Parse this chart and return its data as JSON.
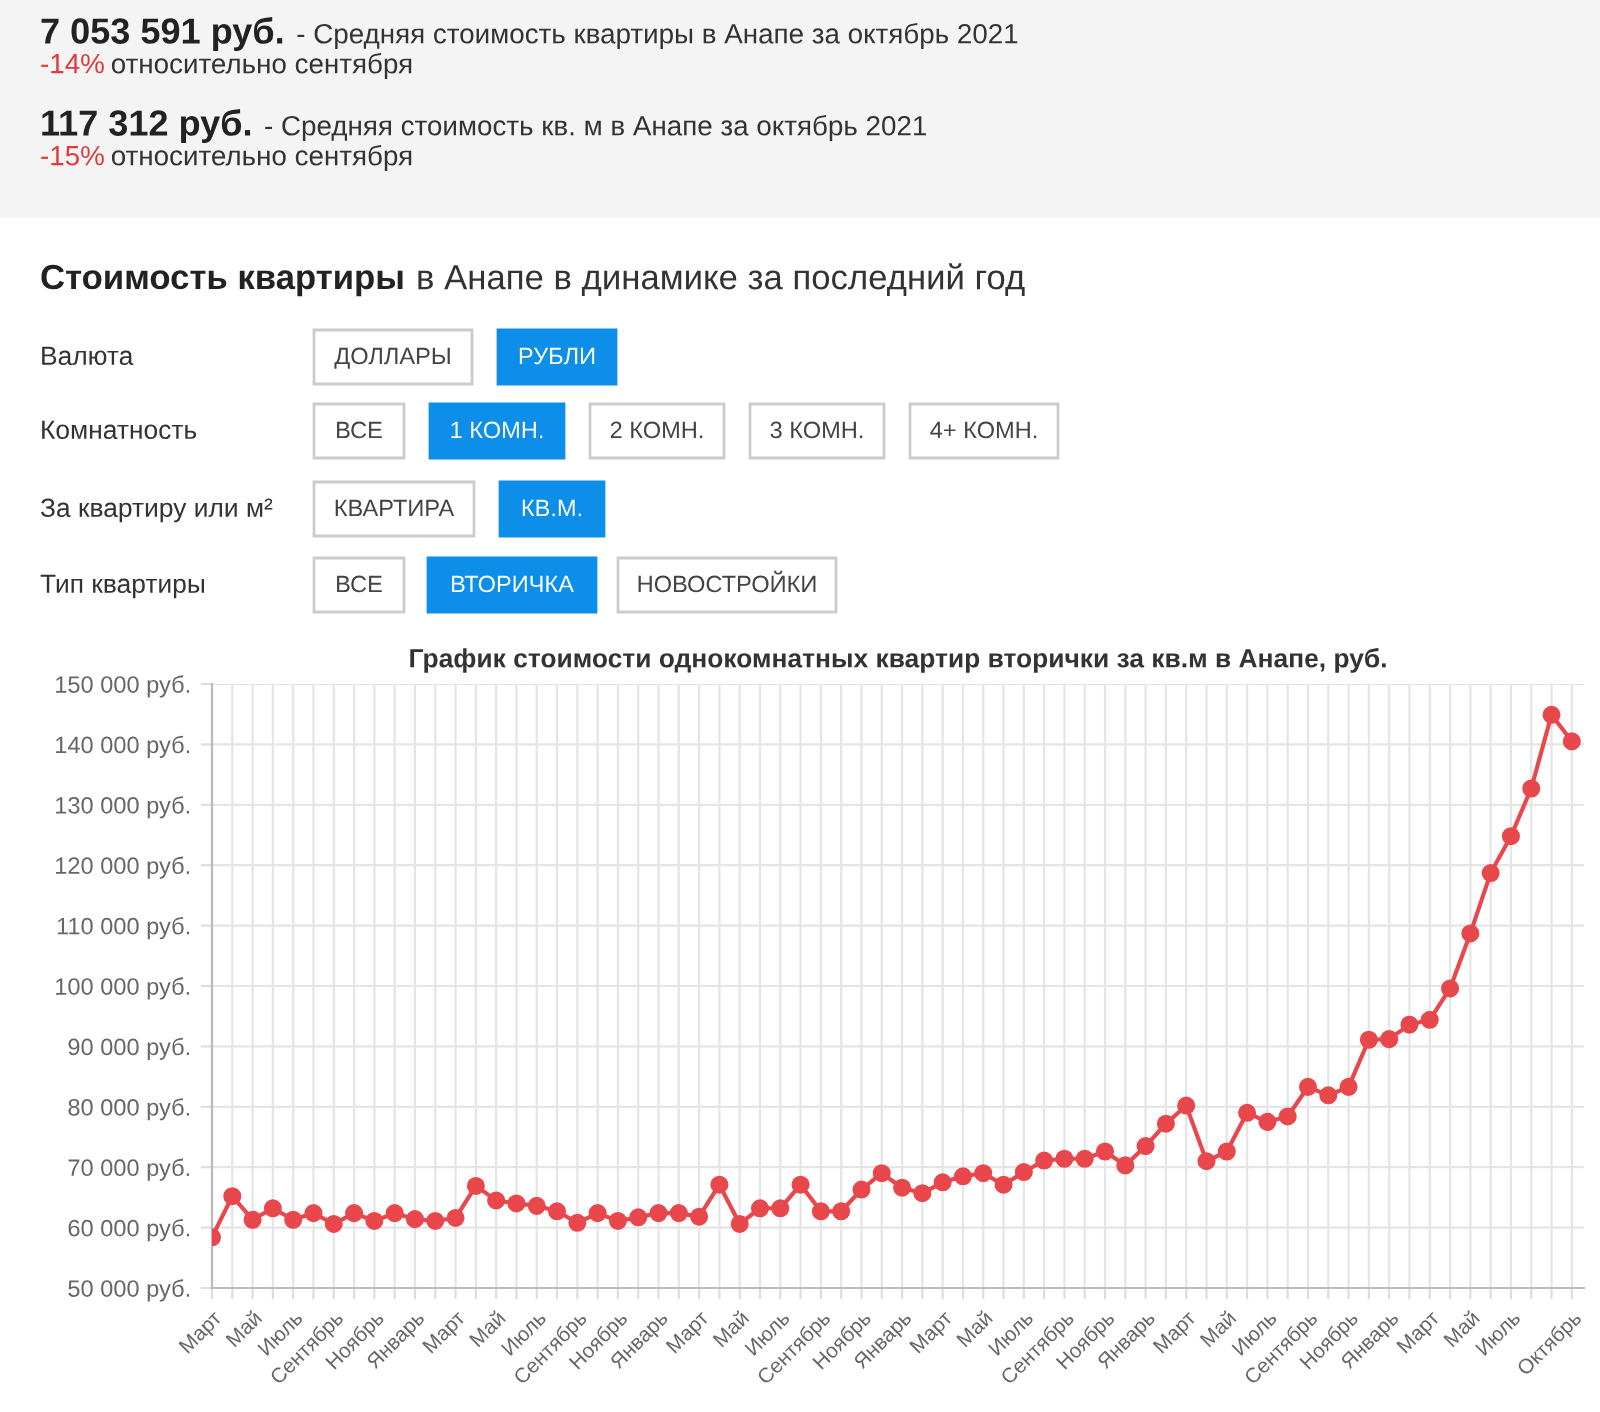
{
  "chart_data": {
    "type": "line",
    "title": "График стоимости однокомнатных квартир вторички за кв.м в Анапе, руб.",
    "categories": [
      "Март",
      null,
      "Май",
      null,
      "Июль",
      null,
      "Сентябрь",
      null,
      "Ноябрь",
      null,
      "Январь",
      null,
      "Март",
      null,
      "Май",
      null,
      "Июль",
      null,
      "Сентябрь",
      null,
      "Ноябрь",
      null,
      "Январь",
      null,
      "Март",
      null,
      "Май",
      null,
      "Июль",
      null,
      "Сентябрь",
      null,
      "Ноябрь",
      null,
      "Январь",
      null,
      "Март",
      null,
      "Май",
      null,
      "Июль",
      null,
      "Сентябрь",
      null,
      "Ноябрь",
      null,
      "Январь",
      null,
      "Март",
      null,
      "Май",
      null,
      "Июль",
      null,
      "Сентябрь",
      null,
      "Ноябрь",
      null,
      "Январь",
      null,
      "Март",
      null,
      "Май",
      null,
      "Июль",
      null,
      null,
      "Октябрь"
    ],
    "series": [
      {
        "color": "#e8474c",
        "values": [
          58400,
          65200,
          61300,
          63200,
          61300,
          62400,
          60600,
          62400,
          61100,
          62400,
          61400,
          61100,
          61600,
          66900,
          64500,
          64000,
          63600,
          62700,
          60800,
          62400,
          61100,
          61700,
          62400,
          62400,
          61800,
          67100,
          60600,
          63200,
          63200,
          67100,
          62700,
          62700,
          66300,
          69000,
          66600,
          65700,
          67500,
          68500,
          69000,
          67100,
          69200,
          71100,
          71400,
          71400,
          72600,
          70300,
          73500,
          77200,
          80200,
          71000,
          72600,
          79000,
          77500,
          78400,
          83300,
          81900,
          83300,
          91100,
          91200,
          93600,
          94400,
          99600,
          108700,
          118700,
          124800,
          132700,
          144900,
          140500
        ]
      }
    ],
    "ylim": [
      50000,
      150000
    ],
    "yticks": [
      {
        "value": 50000,
        "label": "50 000 руб."
      },
      {
        "value": 60000,
        "label": "60 000 руб."
      },
      {
        "value": 70000,
        "label": "70 000 руб."
      },
      {
        "value": 80000,
        "label": "80 000 руб."
      },
      {
        "value": 90000,
        "label": "90 000 руб."
      },
      {
        "value": 100000,
        "label": "100 000 руб."
      },
      {
        "value": 110000,
        "label": "110 000 руб."
      },
      {
        "value": 120000,
        "label": "120 000 руб."
      },
      {
        "value": 130000,
        "label": "130 000 руб."
      },
      {
        "value": 140000,
        "label": "140 000 руб."
      },
      {
        "value": 150000,
        "label": "150 000 руб."
      }
    ],
    "grid": true,
    "marker": "circle",
    "line_style": "solid",
    "legend": false,
    "annotations": [
      "7 053 591 руб.",
      "- Средняя стоимость квартиры в Анапе за октябрь 2021",
      "-14%",
      "относительно сентября",
      "117 312 руб.",
      "- Средняя стоимость кв. м в Анапе за октябрь 2021",
      "-15%",
      "относительно сентября",
      "Стоимость квартиры",
      "в Анапе в динамике за последний год",
      "Валюта",
      "ДОЛЛАРЫ",
      "РУБЛИ",
      "Комнатность",
      "ВСЕ",
      "1 КОМН.",
      "2 КОМН.",
      "3 КОМН.",
      "4+ КОМН.",
      "За квартиру или м²",
      "КВАРТИРА",
      "КВ.М.",
      "Тип квартиры",
      "ВСЕ",
      "ВТОРИЧКА",
      "НОВОСТРОЙКИ"
    ]
  }
}
